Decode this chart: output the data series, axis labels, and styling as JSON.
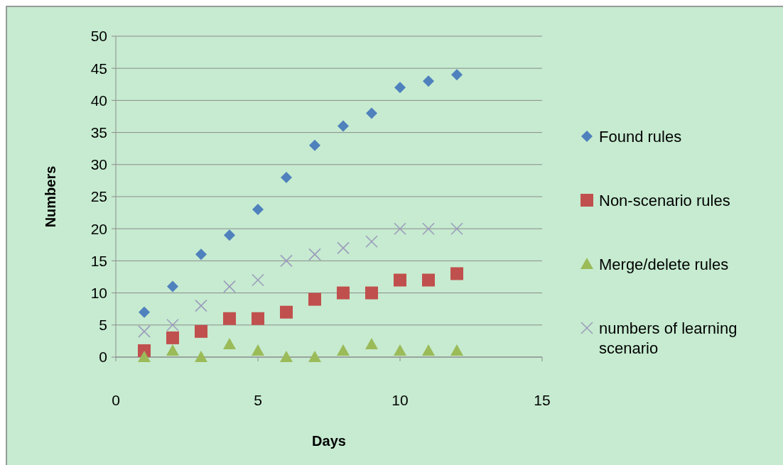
{
  "chart_data": {
    "type": "scatter",
    "xlabel": "Days",
    "ylabel": "Numbers",
    "x": [
      1,
      2,
      3,
      4,
      5,
      6,
      7,
      8,
      9,
      10,
      11,
      12
    ],
    "xlim": [
      0,
      15
    ],
    "xticks": [
      0,
      5,
      10,
      15
    ],
    "ylim": [
      0,
      50
    ],
    "yticks": [
      0,
      5,
      10,
      15,
      20,
      25,
      30,
      35,
      40,
      45,
      50
    ],
    "grid": "y",
    "legend": "right",
    "series": [
      {
        "name": "Found rules",
        "color": "#4f81bd",
        "marker": "diamond",
        "values": [
          7,
          11,
          16,
          19,
          23,
          28,
          33,
          36,
          38,
          42,
          43,
          44
        ]
      },
      {
        "name": "Non-scenario rules",
        "color": "#c0504d",
        "marker": "square",
        "values": [
          1,
          3,
          4,
          6,
          6,
          7,
          9,
          10,
          10,
          12,
          12,
          13
        ]
      },
      {
        "name": "Merge/delete rules",
        "color": "#9bbb59",
        "marker": "triangle",
        "values": [
          0,
          1,
          0,
          2,
          1,
          0,
          0,
          1,
          2,
          1,
          1,
          1
        ]
      },
      {
        "name": "numbers of learning scenario",
        "color": "#9c9cbc",
        "marker": "cross",
        "values": [
          4,
          5,
          8,
          11,
          12,
          15,
          16,
          17,
          18,
          20,
          20,
          20
        ]
      }
    ]
  }
}
